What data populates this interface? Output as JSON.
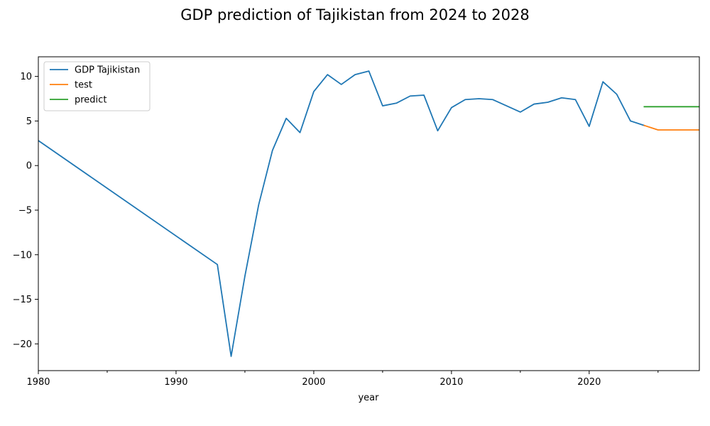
{
  "chart_data": {
    "type": "line",
    "title": "GDP prediction of Tajikistan from 2024 to 2028",
    "xlabel": "year",
    "ylabel": "",
    "xlim": [
      1980,
      2028
    ],
    "ylim": [
      -23,
      12.2
    ],
    "xticks": [
      1980,
      1990,
      2000,
      2010,
      2020
    ],
    "xticks_minor": [
      1985,
      1995,
      2005,
      2015,
      2025
    ],
    "yticks": [
      10,
      5,
      0,
      -5,
      -10,
      -15,
      -20
    ],
    "ytick_labels": [
      "10",
      "5",
      "0",
      "−5",
      "−10",
      "−15",
      "−20"
    ],
    "grid": false,
    "legend": {
      "position": "top-left"
    },
    "series": [
      {
        "name": "GDP Tajikistan",
        "color": "#1f77b4",
        "x": [
          1980,
          1993,
          1994,
          1995,
          1996,
          1997,
          1998,
          1999,
          2000,
          2001,
          2002,
          2003,
          2004,
          2005,
          2006,
          2007,
          2008,
          2009,
          2010,
          2011,
          2012,
          2013,
          2014,
          2015,
          2016,
          2017,
          2018,
          2019,
          2020,
          2021,
          2022,
          2023,
          2024
        ],
        "y": [
          2.8,
          -11.1,
          -21.4,
          -12.4,
          -4.4,
          1.7,
          5.3,
          3.7,
          8.3,
          10.2,
          9.1,
          10.2,
          10.6,
          6.7,
          7.0,
          7.8,
          7.9,
          3.9,
          6.5,
          7.4,
          7.5,
          7.4,
          6.7,
          6.0,
          6.9,
          7.1,
          7.6,
          7.4,
          4.4,
          9.4,
          8.0,
          5.0,
          4.5
        ]
      },
      {
        "name": "test",
        "color": "#ff7f0e",
        "x": [
          2024,
          2025,
          2026,
          2027,
          2028
        ],
        "y": [
          4.5,
          4.0,
          4.0,
          4.0,
          4.0
        ]
      },
      {
        "name": "predict",
        "color": "#2ca02c",
        "x": [
          2024,
          2025,
          2026,
          2027,
          2028
        ],
        "y": [
          6.6,
          6.6,
          6.6,
          6.6,
          6.6
        ]
      }
    ]
  }
}
